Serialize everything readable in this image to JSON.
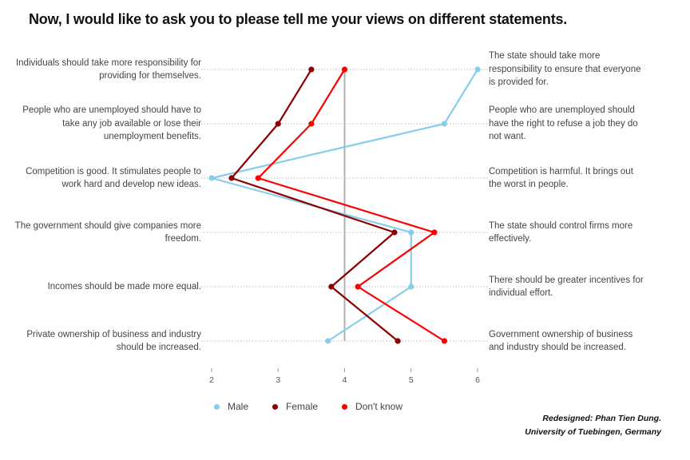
{
  "title": "Now, I would like to ask you to please tell me your views on different statements.",
  "credit": {
    "line1": "Redesigned: Phan Tien Dung.",
    "line2": "University of Tuebingen, Germany"
  },
  "chart_data": {
    "type": "line",
    "orientation": "horizontal",
    "xlim": [
      2,
      6
    ],
    "xticks": [
      "2",
      "3",
      "4",
      "5",
      "6"
    ],
    "midline": 4,
    "grid": "dotted horizontal per statement",
    "legend_position": "bottom",
    "statements": [
      {
        "left": "Individuals should take more responsibility for providing for themselves.",
        "right": "The state should take more responsibility to ensure that everyone is provided for."
      },
      {
        "left": "People who are unemployed should have to take any job available or lose their unemployment benefits.",
        "right": "People who are unemployed should have the right to refuse a job they do not want."
      },
      {
        "left": "Competition is good. It stimulates people to work hard and develop new ideas.",
        "right": "Competition is harmful. It brings out the worst in people."
      },
      {
        "left": "The government should give companies more freedom.",
        "right": "The state should control firms more effectively."
      },
      {
        "left": "Incomes should be made more equal.",
        "right": "There should be greater incentives for individual effort."
      },
      {
        "left": "Private ownership of business and industry should be increased.",
        "right": "Government ownership of business and industry should be increased."
      }
    ],
    "series": [
      {
        "name": "Male",
        "color": "#87CEEB",
        "values": [
          6.0,
          5.5,
          2.0,
          5.0,
          5.0,
          3.75
        ]
      },
      {
        "name": "Female",
        "color": "#8B0000",
        "values": [
          3.5,
          3.0,
          2.3,
          4.75,
          3.8,
          4.8
        ]
      },
      {
        "name": "Don't know",
        "color": "#FF0000",
        "values": [
          4.0,
          3.5,
          2.7,
          5.35,
          4.2,
          5.5
        ]
      }
    ]
  }
}
